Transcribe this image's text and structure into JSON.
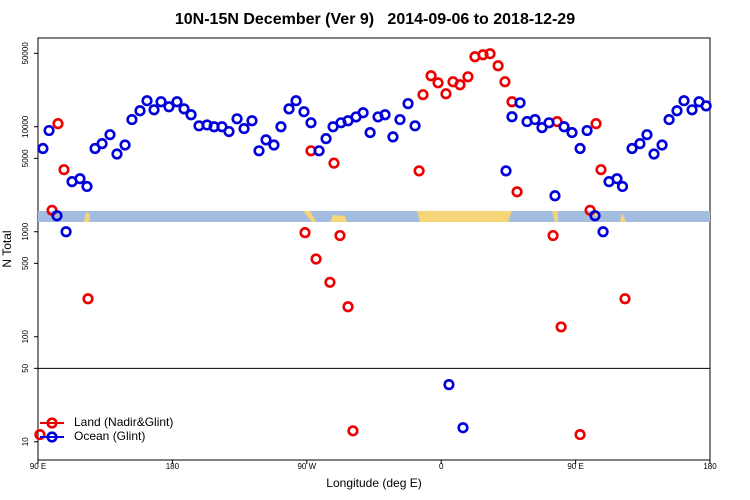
{
  "chart_data": {
    "type": "scatter",
    "title": "10N-15N December (Ver 9)   2014-09-06 to 2018-12-29",
    "xlabel": "Longitude (deg E)",
    "ylabel": "N Total",
    "log_y": true,
    "xlim": [
      90,
      540
    ],
    "ylim": [
      6.7,
      70000
    ],
    "xticks": [
      {
        "value": 90,
        "label": "90 E"
      },
      180,
      {
        "value": 270,
        "label": "90 W"
      },
      {
        "value": 360,
        "label": "0"
      },
      {
        "value": 450,
        "label": "90 E"
      },
      {
        "value": 540,
        "label": "180"
      }
    ],
    "yticks": [
      10,
      50,
      100,
      500,
      1000,
      5000,
      10000,
      50000
    ],
    "reference_line": 50,
    "legend": "bottom-left",
    "series": [
      {
        "name": "Land (Nadir&Glint)",
        "color": "#ee0000",
        "x": [
          91.3,
          99.4,
          103.4,
          107.4,
          123.5,
          268.8,
          272.8,
          276.2,
          285.5,
          288.2,
          292.2,
          297.6,
          300.9,
          345.2,
          347.8,
          353.2,
          357.9,
          363.2,
          367.9,
          372.6,
          377.9,
          382.6,
          388.0,
          392.7,
          398.1,
          402.7,
          407.4,
          410.8,
          434.9,
          437.6,
          440.3,
          453.0,
          459.7,
          463.7,
          467.0,
          483.1
        ],
        "values": [
          11.7,
          1600,
          10700,
          3900,
          230,
          980,
          5900,
          550,
          330,
          4500,
          920,
          193,
          12.7,
          3800,
          20200,
          30600,
          26200,
          20600,
          26800,
          25100,
          29900,
          46400,
          48500,
          49600,
          38100,
          26800,
          17300,
          2400,
          920,
          11200,
          124,
          11.7,
          1600,
          10700,
          3900,
          230
        ]
      },
      {
        "name": "Ocean (Glint)",
        "color": "#0000dd",
        "x": [
          93.3,
          97.4,
          102.7,
          108.8,
          112.8,
          118.1,
          122.8,
          128.2,
          132.9,
          138.2,
          142.9,
          148.3,
          152.9,
          158.3,
          163.0,
          167.7,
          172.4,
          177.7,
          183.1,
          187.8,
          192.5,
          197.8,
          203.2,
          207.9,
          213.2,
          217.9,
          223.3,
          228.0,
          233.3,
          238.0,
          242.7,
          248.0,
          252.7,
          258.1,
          262.8,
          268.1,
          272.8,
          278.2,
          282.9,
          287.6,
          292.9,
          297.6,
          303.0,
          307.7,
          312.4,
          317.7,
          322.4,
          327.7,
          332.4,
          337.8,
          342.5,
          365.2,
          374.6,
          403.4,
          407.4,
          412.8,
          417.5,
          422.8,
          427.5,
          432.2,
          436.2,
          442.3,
          447.6,
          453.0,
          457.7,
          463.0,
          468.4,
          472.4,
          477.7,
          481.4,
          487.8,
          493.1,
          497.8,
          502.5,
          507.9,
          512.6,
          517.9,
          522.6,
          528.0,
          532.7,
          537.4
        ],
        "values": [
          6200,
          9200,
          1420,
          1000,
          3000,
          3200,
          2700,
          6200,
          6900,
          8400,
          5500,
          6700,
          11700,
          14200,
          17700,
          14500,
          17300,
          15500,
          17300,
          14800,
          13000,
          10200,
          10400,
          10000,
          10000,
          9000,
          11900,
          9600,
          11400,
          5900,
          7500,
          6700,
          10000,
          14800,
          17700,
          13900,
          10900,
          5900,
          7700,
          10000,
          10900,
          11400,
          12400,
          13600,
          8800,
          12400,
          13000,
          8000,
          11700,
          16600,
          10200,
          35,
          13.6,
          3800,
          12450,
          16900,
          11200,
          11700,
          9800,
          10900,
          2200,
          10000,
          8800,
          6200,
          9200,
          1420,
          1000,
          3000,
          3200,
          2700,
          6200,
          6900,
          8400,
          5500,
          6700,
          11700,
          14200,
          17700,
          14500,
          17300,
          15800
        ]
      }
    ]
  }
}
